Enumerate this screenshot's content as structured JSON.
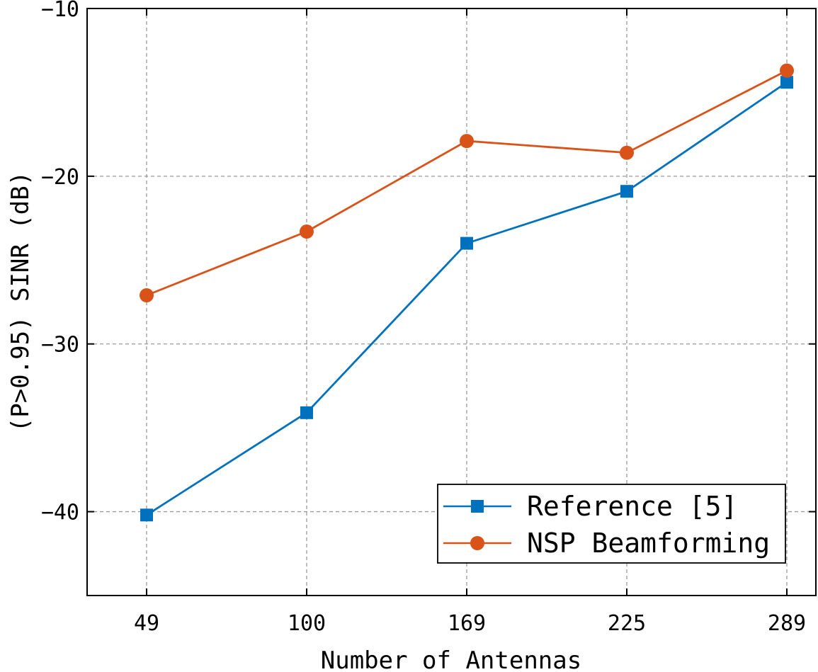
{
  "chart_data": {
    "type": "line",
    "title": "",
    "xlabel": "Number of Antennas",
    "ylabel": "(P>0.95) SINR (dB)",
    "categories": [
      "49",
      "100",
      "169",
      "225",
      "289"
    ],
    "ylim": [
      -45,
      -10
    ],
    "yticks": [
      -10,
      -20,
      -30,
      -40
    ],
    "ytick_labels": [
      "−10",
      "−20",
      "−30",
      "−40"
    ],
    "grid": true,
    "legend_position": "bottom-right",
    "series": [
      {
        "name": "Reference [5]",
        "color": "#0072BD",
        "marker": "square",
        "values": [
          -40.2,
          -34.1,
          -24.0,
          -20.9,
          -14.4
        ]
      },
      {
        "name": "NSP Beamforming",
        "color": "#D95319",
        "marker": "circle",
        "values": [
          -27.1,
          -23.3,
          -17.9,
          -18.6,
          -13.7
        ]
      }
    ]
  }
}
